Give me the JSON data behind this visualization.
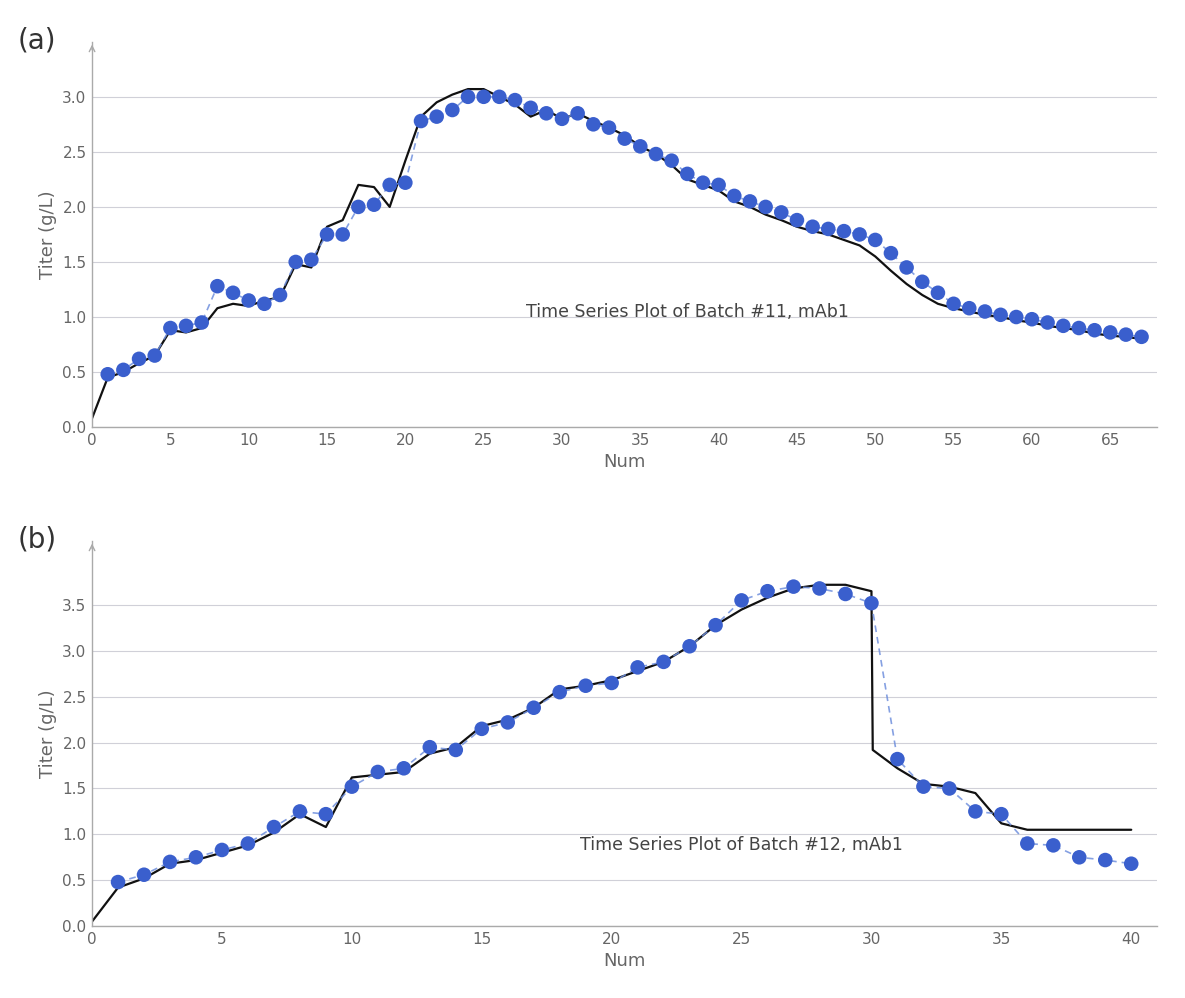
{
  "batch11": {
    "title": "Time Series Plot of Batch #11, mAb1",
    "dots_x": [
      1,
      2,
      3,
      4,
      5,
      6,
      7,
      8,
      9,
      10,
      11,
      12,
      13,
      14,
      15,
      16,
      17,
      18,
      19,
      20,
      21,
      22,
      23,
      24,
      25,
      26,
      27,
      28,
      29,
      30,
      31,
      32,
      33,
      34,
      35,
      36,
      37,
      38,
      39,
      40,
      41,
      42,
      43,
      44,
      45,
      46,
      47,
      48,
      49,
      50,
      51,
      52,
      53,
      54,
      55,
      56,
      57,
      58,
      59,
      60,
      61,
      62,
      63,
      64,
      65,
      66,
      67
    ],
    "dots_y": [
      0.48,
      0.52,
      0.62,
      0.65,
      0.9,
      0.92,
      0.95,
      1.28,
      1.22,
      1.15,
      1.12,
      1.2,
      1.5,
      1.52,
      1.75,
      1.75,
      2.0,
      2.02,
      2.2,
      2.22,
      2.78,
      2.82,
      2.88,
      3.0,
      3.0,
      3.0,
      2.97,
      2.9,
      2.85,
      2.8,
      2.85,
      2.75,
      2.72,
      2.62,
      2.55,
      2.48,
      2.42,
      2.3,
      2.22,
      2.2,
      2.1,
      2.05,
      2.0,
      1.95,
      1.88,
      1.82,
      1.8,
      1.78,
      1.75,
      1.7,
      1.58,
      1.45,
      1.32,
      1.22,
      1.12,
      1.08,
      1.05,
      1.02,
      1.0,
      0.98,
      0.95,
      0.92,
      0.9,
      0.88,
      0.86,
      0.84,
      0.82
    ],
    "line_x": [
      0,
      1,
      2,
      3,
      4,
      5,
      6,
      7,
      8,
      9,
      10,
      11,
      12,
      13,
      14,
      15,
      16,
      17,
      18,
      19,
      20,
      21,
      22,
      23,
      24,
      25,
      26,
      27,
      28,
      29,
      30,
      31,
      32,
      33,
      34,
      35,
      36,
      37,
      38,
      39,
      40,
      41,
      42,
      43,
      44,
      45,
      46,
      47,
      48,
      49,
      50,
      51,
      52,
      53,
      54,
      55,
      56,
      57,
      58,
      59,
      60,
      61,
      62,
      63,
      64,
      65,
      66,
      67
    ],
    "line_y": [
      0.08,
      0.45,
      0.5,
      0.58,
      0.65,
      0.88,
      0.86,
      0.9,
      1.08,
      1.12,
      1.1,
      1.15,
      1.18,
      1.48,
      1.45,
      1.82,
      1.88,
      2.2,
      2.18,
      2.0,
      2.42,
      2.82,
      2.95,
      3.02,
      3.07,
      3.07,
      3.0,
      2.93,
      2.82,
      2.88,
      2.8,
      2.85,
      2.78,
      2.72,
      2.65,
      2.55,
      2.48,
      2.38,
      2.25,
      2.2,
      2.15,
      2.05,
      2.0,
      1.93,
      1.88,
      1.82,
      1.78,
      1.75,
      1.7,
      1.65,
      1.55,
      1.42,
      1.3,
      1.2,
      1.12,
      1.08,
      1.05,
      1.02,
      1.0,
      0.97,
      0.95,
      0.92,
      0.9,
      0.88,
      0.85,
      0.83,
      0.82,
      0.8
    ],
    "xlabel": "Num",
    "ylabel": "Titer (g/L)",
    "xlim": [
      0,
      68
    ],
    "ylim": [
      0,
      3.5
    ],
    "xticks": [
      0,
      5,
      10,
      15,
      20,
      25,
      30,
      35,
      40,
      45,
      50,
      55,
      60,
      65
    ],
    "yticks": [
      0,
      0.5,
      1.0,
      1.5,
      2.0,
      2.5,
      3.0
    ],
    "ann_x": 38,
    "ann_y": 1.05
  },
  "batch12": {
    "title": "Time Series Plot of Batch #12, mAb1",
    "dots_x": [
      1,
      2,
      3,
      4,
      5,
      6,
      7,
      8,
      9,
      10,
      11,
      12,
      13,
      14,
      15,
      16,
      17,
      18,
      19,
      20,
      21,
      22,
      23,
      24,
      25,
      26,
      27,
      28,
      29,
      30,
      31,
      32,
      33,
      34,
      35,
      36,
      37,
      38,
      39,
      40
    ],
    "dots_y": [
      0.48,
      0.56,
      0.7,
      0.75,
      0.83,
      0.9,
      1.08,
      1.25,
      1.22,
      1.52,
      1.68,
      1.72,
      1.95,
      1.92,
      2.15,
      2.22,
      2.38,
      2.55,
      2.62,
      2.65,
      2.82,
      2.88,
      3.05,
      3.28,
      3.55,
      3.65,
      3.7,
      3.68,
      3.62,
      3.52,
      1.82,
      1.52,
      1.5,
      1.25,
      1.22,
      0.9,
      0.88,
      0.75,
      0.72,
      0.68
    ],
    "line_x": [
      0,
      1,
      2,
      3,
      4,
      5,
      6,
      7,
      8,
      9,
      10,
      11,
      12,
      13,
      14,
      15,
      16,
      17,
      18,
      19,
      20,
      21,
      22,
      23,
      24,
      25,
      26,
      27,
      28,
      29,
      30,
      30.05,
      31,
      32,
      33,
      34,
      35,
      36,
      37,
      38,
      39,
      40
    ],
    "line_y": [
      0.05,
      0.42,
      0.52,
      0.68,
      0.72,
      0.8,
      0.88,
      1.02,
      1.22,
      1.08,
      1.62,
      1.65,
      1.68,
      1.88,
      1.95,
      2.18,
      2.25,
      2.38,
      2.58,
      2.62,
      2.68,
      2.78,
      2.88,
      3.05,
      3.28,
      3.45,
      3.58,
      3.68,
      3.72,
      3.72,
      3.65,
      1.92,
      1.72,
      1.55,
      1.52,
      1.45,
      1.12,
      1.05,
      1.05,
      1.05,
      1.05,
      1.05
    ],
    "xlabel": "Num",
    "ylabel": "Titer (g/L)",
    "xlim": [
      0,
      41
    ],
    "ylim": [
      0,
      4.2
    ],
    "xticks": [
      0,
      5,
      10,
      15,
      20,
      25,
      30,
      35,
      40
    ],
    "yticks": [
      0,
      0.5,
      1.0,
      1.5,
      2.0,
      2.5,
      3.0,
      3.5
    ],
    "ann_x": 25,
    "ann_y": 0.88
  },
  "dot_color": "#3A5FCD",
  "line_color": "#111111",
  "dot_size": 110,
  "dot_connector_color": "#7090DD",
  "background_color": "#ffffff",
  "grid_color": "#d0d0d8",
  "label_fontsize": 13,
  "title_fontsize": 12.5,
  "tick_fontsize": 11,
  "panel_label_fontsize": 20,
  "spine_color": "#aaaaaa"
}
